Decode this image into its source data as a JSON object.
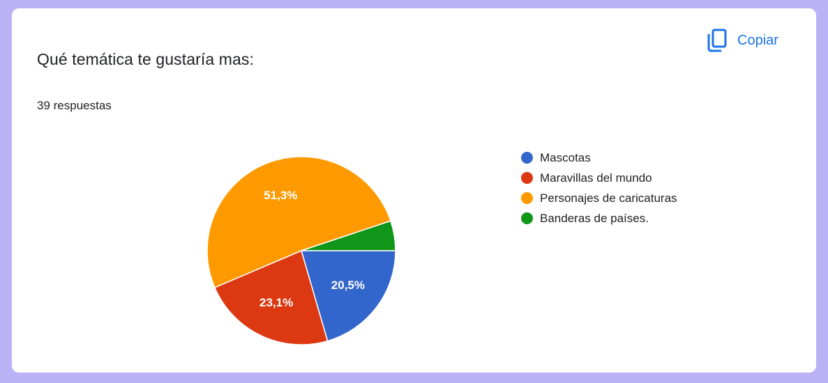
{
  "card": {
    "question_title": "Qué temática te gustaría mas:",
    "response_count_text": "39 respuestas",
    "copy_button": {
      "label": "Copiar",
      "icon": "copy-icon"
    }
  },
  "colors": {
    "accent": "#1a73e8",
    "page_background": "#b9b3f5"
  },
  "chart_data": {
    "type": "pie",
    "total": 39,
    "legend_position": "right",
    "slices": [
      {
        "label": "Mascotas",
        "value": 8,
        "percent_label": "20,5%",
        "color": "#3366cc"
      },
      {
        "label": "Maravillas del mundo",
        "value": 9,
        "percent_label": "23,1%",
        "color": "#dc3912"
      },
      {
        "label": "Personajes de caricaturas",
        "value": 20,
        "percent_label": "51,3%",
        "color": "#ff9900"
      },
      {
        "label": "Banderas de países.",
        "value": 2,
        "percent_label": "",
        "color": "#109618"
      }
    ]
  }
}
